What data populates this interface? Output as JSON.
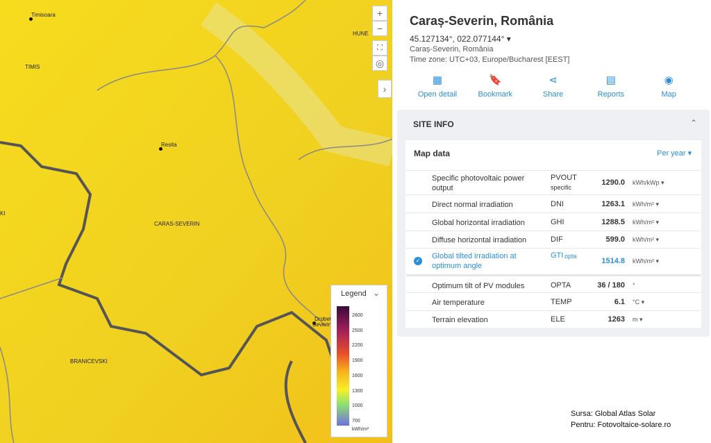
{
  "map": {
    "labels": [
      {
        "text": "Timisoara",
        "dot": true
      },
      {
        "text": "TIMIS",
        "dot": false
      },
      {
        "text": "HUNE",
        "dot": false
      },
      {
        "text": "Resita",
        "dot": true
      },
      {
        "text": "CARAS-SEVERIN",
        "dot": false
      },
      {
        "text": "BRANICEVSKI",
        "dot": false
      },
      {
        "text": "Drobeta",
        "dot": true
      },
      {
        "text": "Severin",
        "dot": false
      },
      {
        "text": "KI",
        "dot": false
      }
    ],
    "legend": {
      "title": "Legend",
      "ticks": [
        2800,
        2500,
        2200,
        1900,
        1600,
        1300,
        1000,
        700
      ],
      "unit": "kWh/m²"
    }
  },
  "panel": {
    "title": "Caraș-Severin, România",
    "coords": "45.127134°, 022.077144°",
    "region": "Caraș-Severin, România",
    "timezone": "Time zone: UTC+03, Europe/Bucharest [EEST]",
    "actions": [
      "Open detail",
      "Bookmark",
      "Share",
      "Reports",
      "Map"
    ],
    "section": "SITE INFO",
    "map_data": "Map data",
    "period": "Per year",
    "rows": [
      {
        "name": "Specific photovoltaic power output",
        "abbr": "PVOUT",
        "abbr_sub": "specific",
        "value": "1290.0",
        "unit": "kWh/kWp",
        "unit_menu": true,
        "selected": false
      },
      {
        "name": "Direct normal irradiation",
        "abbr": "DNI",
        "value": "1263.1",
        "unit": "kWh/m²",
        "unit_menu": true,
        "selected": false
      },
      {
        "name": "Global horizontal irradiation",
        "abbr": "GHI",
        "value": "1288.5",
        "unit": "kWh/m²",
        "unit_menu": true,
        "selected": false
      },
      {
        "name": "Diffuse horizontal irradiation",
        "abbr": "DIF",
        "value": "599.0",
        "unit": "kWh/m²",
        "unit_menu": true,
        "selected": false
      },
      {
        "name": "Global tilted irradiation at optimum angle",
        "abbr": "GTI",
        "abbr_sub": "opta",
        "value": "1514.8",
        "unit": "kWh/m²",
        "unit_menu": true,
        "selected": true
      },
      {
        "name": "Optimum tilt of PV modules",
        "abbr": "OPTA",
        "value": "36 / 180",
        "unit": "°",
        "unit_menu": false,
        "selected": false
      },
      {
        "name": "Air temperature",
        "abbr": "TEMP",
        "value": "6.1",
        "unit": "°C",
        "unit_menu": true,
        "selected": false
      },
      {
        "name": "Terrain elevation",
        "abbr": "ELE",
        "value": "1263",
        "unit": "m",
        "unit_menu": true,
        "selected": false
      }
    ]
  },
  "footer": {
    "source": "Sursa: Global Atlas Solar",
    "for": "Pentru: Fotovoltaice-solare.ro"
  }
}
